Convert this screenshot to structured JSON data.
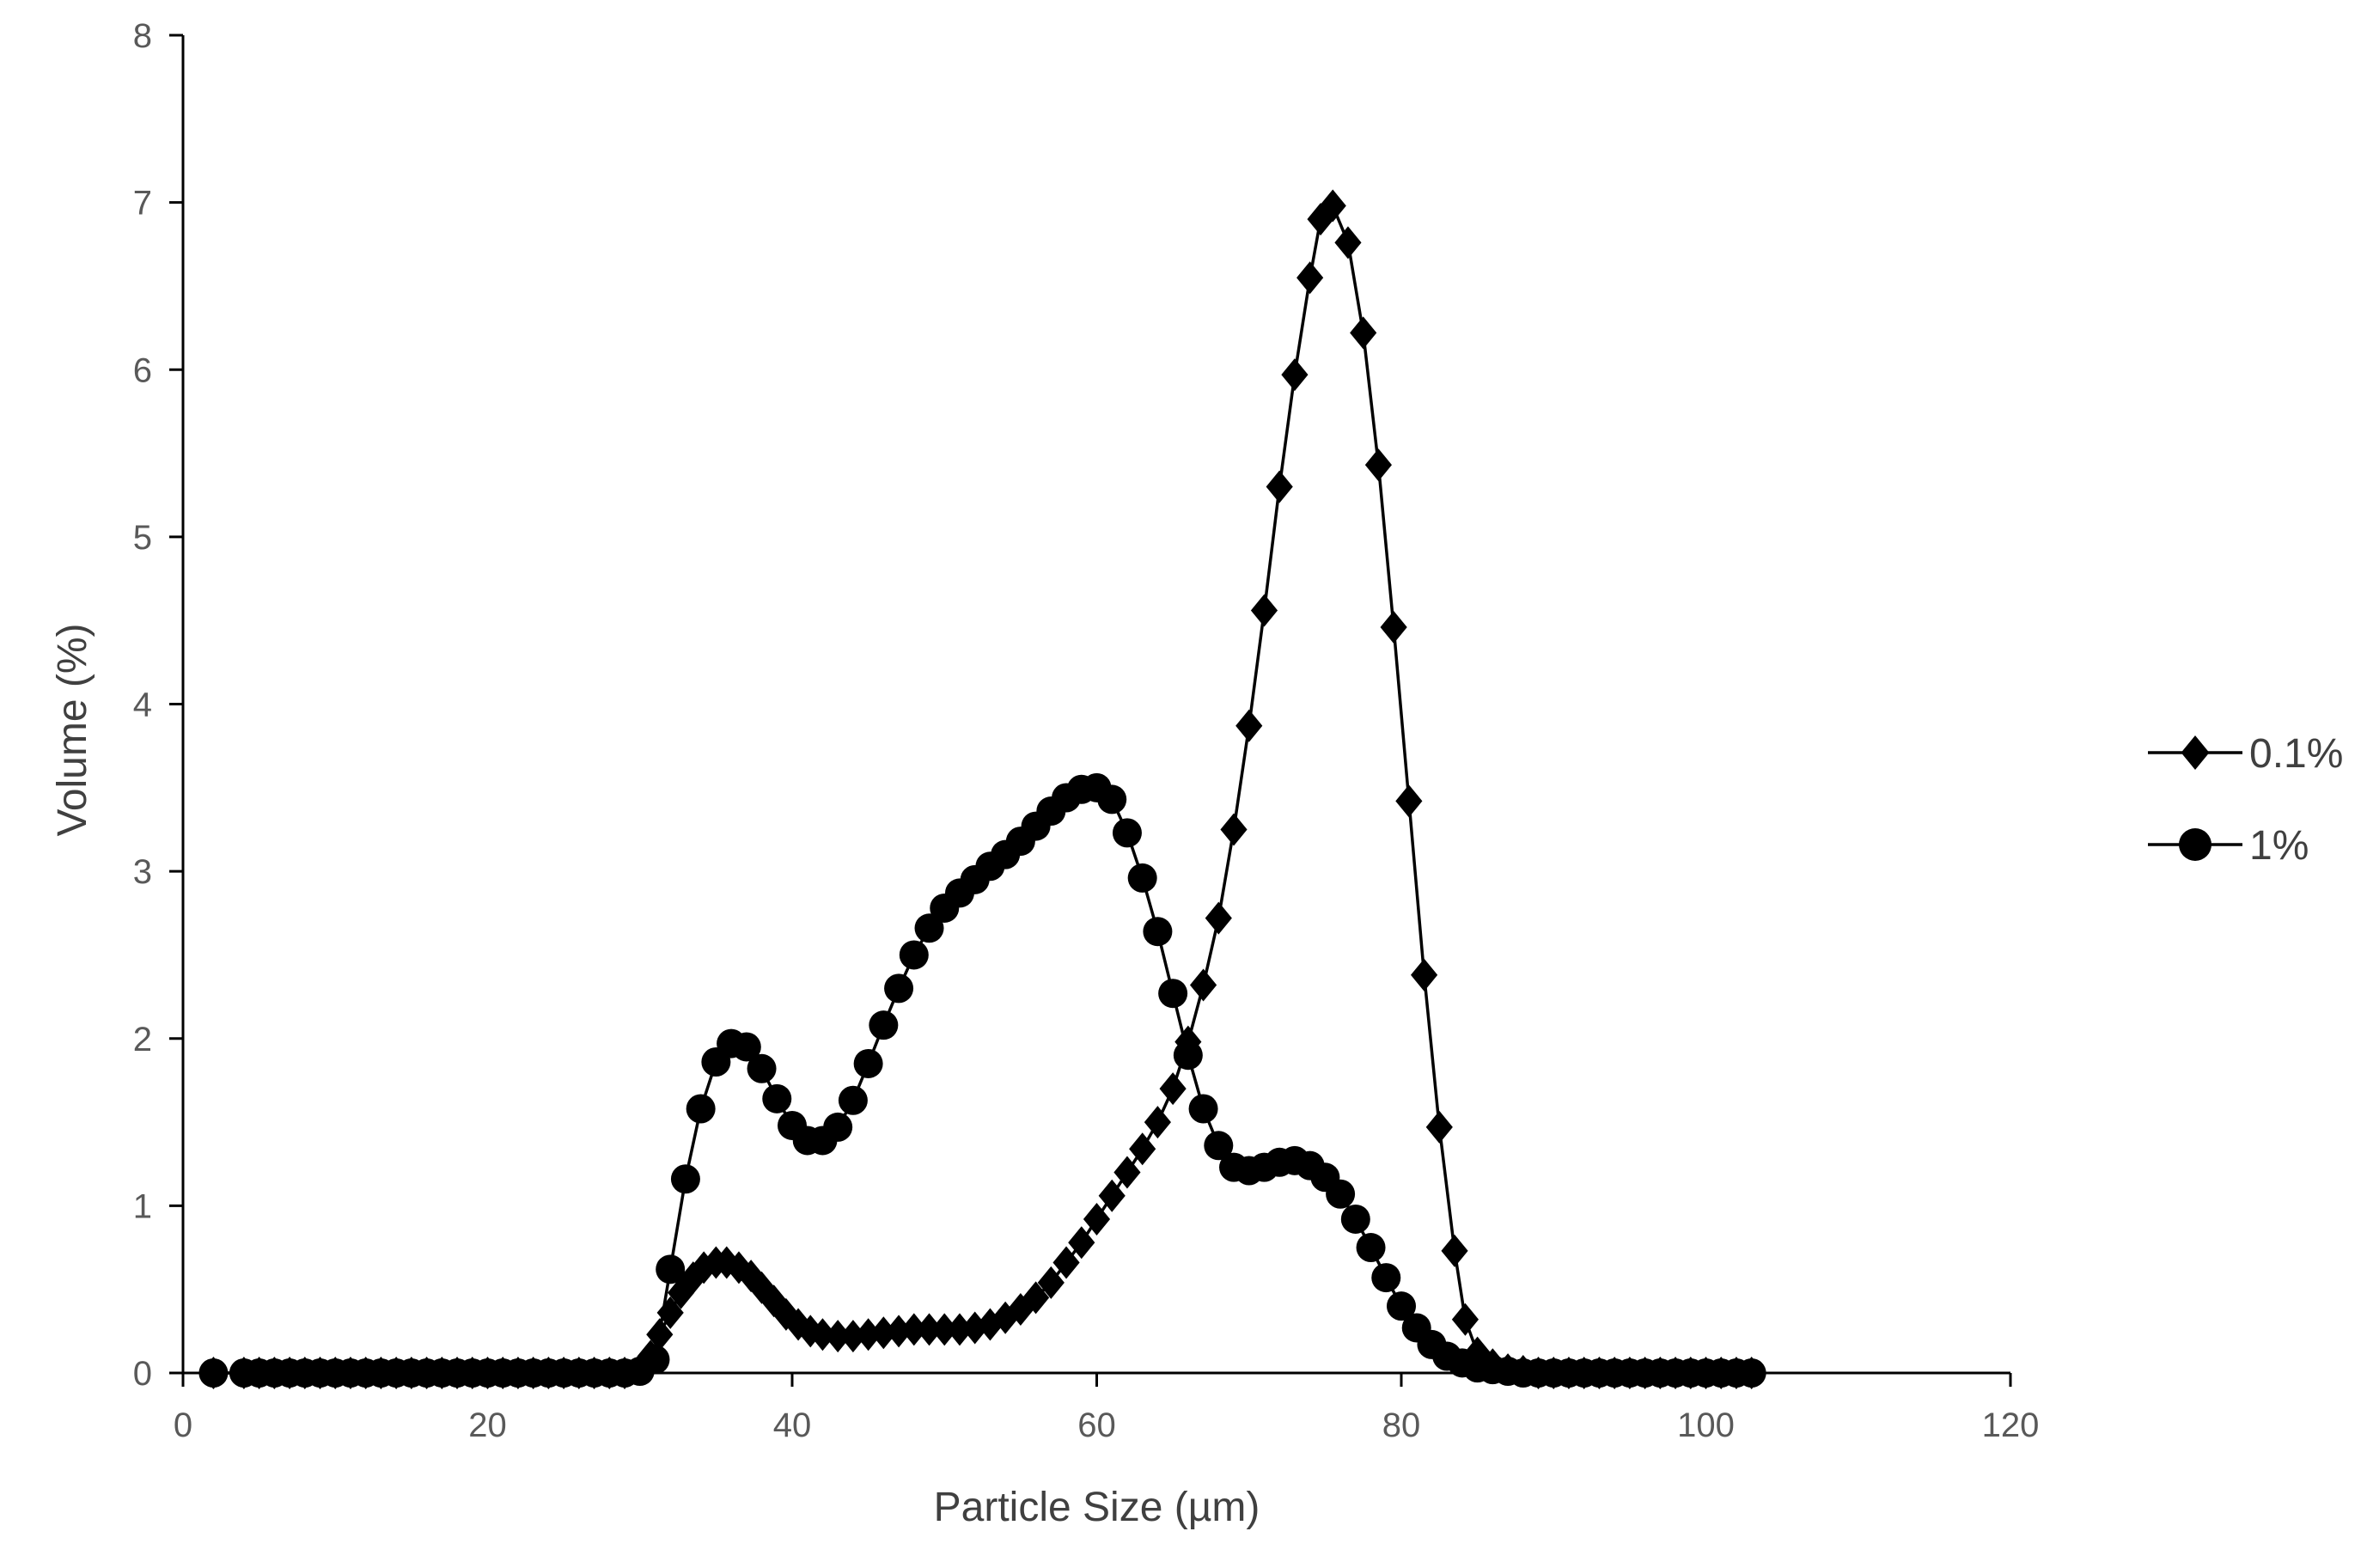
{
  "chart_data": {
    "type": "scatter",
    "title": "",
    "xlabel": "Particle Size (µm)",
    "ylabel": "Volume (%)",
    "xlim": [
      0,
      120
    ],
    "ylim": [
      0,
      8
    ],
    "x_ticks": [
      "0",
      "20",
      "40",
      "60",
      "80",
      "100",
      "120"
    ],
    "y_ticks": [
      "0",
      "1",
      "2",
      "3",
      "4",
      "5",
      "6",
      "7",
      "8"
    ],
    "grid": false,
    "legend_position": "right",
    "series": [
      {
        "name": "0.1%",
        "marker": "diamond",
        "color": "#000000",
        "points": [
          [
            2,
            0
          ],
          [
            4,
            0
          ],
          [
            5,
            0
          ],
          [
            6,
            0
          ],
          [
            7,
            0
          ],
          [
            8,
            0
          ],
          [
            9,
            0
          ],
          [
            10,
            0
          ],
          [
            11,
            0
          ],
          [
            12,
            0
          ],
          [
            13,
            0
          ],
          [
            14,
            0
          ],
          [
            15,
            0
          ],
          [
            16,
            0
          ],
          [
            17,
            0
          ],
          [
            18,
            0
          ],
          [
            19,
            0
          ],
          [
            20,
            0
          ],
          [
            21,
            0
          ],
          [
            22,
            0
          ],
          [
            23,
            0
          ],
          [
            24,
            0
          ],
          [
            25,
            0
          ],
          [
            26,
            0
          ],
          [
            27,
            0
          ],
          [
            28,
            0
          ],
          [
            29,
            0
          ],
          [
            30,
            0.02
          ],
          [
            30.7,
            0.1
          ],
          [
            31.3,
            0.23
          ],
          [
            32,
            0.36
          ],
          [
            32.7,
            0.48
          ],
          [
            33.5,
            0.57
          ],
          [
            34.2,
            0.63
          ],
          [
            35,
            0.66
          ],
          [
            35.7,
            0.66
          ],
          [
            36.5,
            0.63
          ],
          [
            37.3,
            0.58
          ],
          [
            38,
            0.51
          ],
          [
            38.8,
            0.43
          ],
          [
            39.6,
            0.35
          ],
          [
            40.4,
            0.29
          ],
          [
            41.2,
            0.25
          ],
          [
            42,
            0.23
          ],
          [
            43,
            0.22
          ],
          [
            44,
            0.22
          ],
          [
            45,
            0.23
          ],
          [
            46,
            0.24
          ],
          [
            47,
            0.25
          ],
          [
            48,
            0.26
          ],
          [
            49,
            0.26
          ],
          [
            50,
            0.26
          ],
          [
            51,
            0.26
          ],
          [
            52,
            0.27
          ],
          [
            53,
            0.29
          ],
          [
            54,
            0.33
          ],
          [
            55,
            0.38
          ],
          [
            56,
            0.45
          ],
          [
            57,
            0.54
          ],
          [
            58,
            0.66
          ],
          [
            59,
            0.78
          ],
          [
            60,
            0.92
          ],
          [
            61,
            1.06
          ],
          [
            62,
            1.2
          ],
          [
            63,
            1.34
          ],
          [
            64,
            1.5
          ],
          [
            65,
            1.7
          ],
          [
            66,
            1.98
          ],
          [
            67,
            2.32
          ],
          [
            68,
            2.72
          ],
          [
            69,
            3.25
          ],
          [
            70,
            3.87
          ],
          [
            71,
            4.56
          ],
          [
            72,
            5.3
          ],
          [
            73,
            5.97
          ],
          [
            74,
            6.55
          ],
          [
            74.7,
            6.9
          ],
          [
            75.5,
            6.98
          ],
          [
            76.5,
            6.76
          ],
          [
            77.5,
            6.22
          ],
          [
            78.5,
            5.43
          ],
          [
            79.5,
            4.46
          ],
          [
            80.5,
            3.42
          ],
          [
            81.5,
            2.38
          ],
          [
            82.5,
            1.47
          ],
          [
            83.5,
            0.73
          ],
          [
            84.2,
            0.32
          ],
          [
            85,
            0.12
          ],
          [
            86,
            0.05
          ],
          [
            87,
            0.02
          ],
          [
            88,
            0.01
          ],
          [
            89,
            0
          ],
          [
            90,
            0
          ],
          [
            91,
            0
          ],
          [
            92,
            0
          ],
          [
            93,
            0
          ],
          [
            94,
            0
          ],
          [
            95,
            0
          ],
          [
            96,
            0
          ],
          [
            97,
            0
          ],
          [
            98,
            0
          ],
          [
            99,
            0
          ],
          [
            100,
            0
          ],
          [
            101,
            0
          ],
          [
            102,
            0
          ],
          [
            103,
            0
          ]
        ]
      },
      {
        "name": "1%",
        "marker": "circle",
        "color": "#000000",
        "points": [
          [
            2,
            0
          ],
          [
            4,
            0
          ],
          [
            5,
            0
          ],
          [
            6,
            0
          ],
          [
            7,
            0
          ],
          [
            8,
            0
          ],
          [
            9,
            0
          ],
          [
            10,
            0
          ],
          [
            11,
            0
          ],
          [
            12,
            0
          ],
          [
            13,
            0
          ],
          [
            14,
            0
          ],
          [
            15,
            0
          ],
          [
            16,
            0
          ],
          [
            17,
            0
          ],
          [
            18,
            0
          ],
          [
            19,
            0
          ],
          [
            20,
            0
          ],
          [
            21,
            0
          ],
          [
            22,
            0
          ],
          [
            23,
            0
          ],
          [
            24,
            0
          ],
          [
            25,
            0
          ],
          [
            26,
            0
          ],
          [
            27,
            0
          ],
          [
            28,
            0
          ],
          [
            29,
            0
          ],
          [
            30,
            0.01
          ],
          [
            31,
            0.08
          ],
          [
            32,
            0.62
          ],
          [
            33,
            1.16
          ],
          [
            34,
            1.58
          ],
          [
            35,
            1.86
          ],
          [
            36,
            1.97
          ],
          [
            37,
            1.95
          ],
          [
            38,
            1.82
          ],
          [
            39,
            1.64
          ],
          [
            40,
            1.48
          ],
          [
            41,
            1.39
          ],
          [
            42,
            1.39
          ],
          [
            43,
            1.47
          ],
          [
            44,
            1.63
          ],
          [
            45,
            1.85
          ],
          [
            46,
            2.08
          ],
          [
            47,
            2.3
          ],
          [
            48,
            2.5
          ],
          [
            49,
            2.66
          ],
          [
            50,
            2.78
          ],
          [
            51,
            2.87
          ],
          [
            52,
            2.95
          ],
          [
            53,
            3.03
          ],
          [
            54,
            3.1
          ],
          [
            55,
            3.18
          ],
          [
            56,
            3.27
          ],
          [
            57,
            3.36
          ],
          [
            58,
            3.44
          ],
          [
            59,
            3.49
          ],
          [
            60,
            3.5
          ],
          [
            61,
            3.43
          ],
          [
            62,
            3.23
          ],
          [
            63,
            2.96
          ],
          [
            64,
            2.64
          ],
          [
            65,
            2.27
          ],
          [
            66,
            1.9
          ],
          [
            67,
            1.58
          ],
          [
            68,
            1.36
          ],
          [
            69,
            1.23
          ],
          [
            70,
            1.21
          ],
          [
            71,
            1.23
          ],
          [
            72,
            1.26
          ],
          [
            73,
            1.27
          ],
          [
            74,
            1.24
          ],
          [
            75,
            1.17
          ],
          [
            76,
            1.07
          ],
          [
            77,
            0.92
          ],
          [
            78,
            0.75
          ],
          [
            79,
            0.57
          ],
          [
            80,
            0.4
          ],
          [
            81,
            0.27
          ],
          [
            82,
            0.17
          ],
          [
            83,
            0.1
          ],
          [
            84,
            0.06
          ],
          [
            85,
            0.03
          ],
          [
            86,
            0.02
          ],
          [
            87,
            0.01
          ],
          [
            88,
            0
          ],
          [
            89,
            0
          ],
          [
            90,
            0
          ],
          [
            91,
            0
          ],
          [
            92,
            0
          ],
          [
            93,
            0
          ],
          [
            94,
            0
          ],
          [
            95,
            0
          ],
          [
            96,
            0
          ],
          [
            97,
            0
          ],
          [
            98,
            0
          ],
          [
            99,
            0
          ],
          [
            100,
            0
          ],
          [
            101,
            0
          ],
          [
            102,
            0
          ],
          [
            103,
            0
          ]
        ]
      }
    ]
  }
}
